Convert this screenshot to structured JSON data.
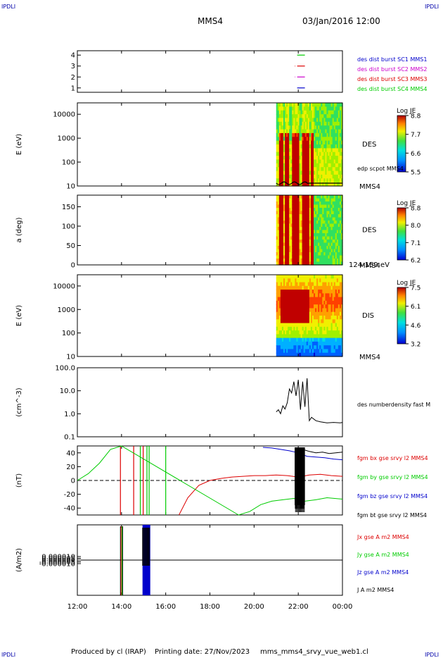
{
  "header": {
    "corner_left_top": "IPDLI",
    "corner_right_top": "IPDLI",
    "corner_left_bottom": "IPDLI",
    "corner_right_bottom": "IPDLI",
    "spacecraft": "MMS4",
    "date": "03/Jan/2016 12:00"
  },
  "footer": {
    "credit": "Produced by cl (IRAP)",
    "printing_date": "Printing date: 27/Nov/2023",
    "filename": "mms_mms4_srvy_vue_web1.cl"
  },
  "colors": {
    "mms1": "#0000cc",
    "mms2": "#cc00cc",
    "mms3": "#dd0000",
    "mms4": "#00cc00",
    "bx": "#dd0000",
    "by": "#00cc00",
    "bz": "#0000cc",
    "bt": "#000000"
  },
  "chart_data": [
    {
      "type": "line",
      "name": "burst-availability",
      "x_range": [
        "12:00",
        "00:00"
      ],
      "yticks": [
        "1",
        "2",
        "3",
        "4"
      ],
      "ylim": [
        0.6,
        4.4
      ],
      "series": [
        {
          "name": "des dist burst SC1 MMS1",
          "y": 1,
          "intervals": [
            [
              21.95,
              22.3
            ]
          ]
        },
        {
          "name": "des dist burst SC2 MMS2",
          "y": 2,
          "intervals": [
            [
              21.85,
              21.87
            ],
            [
              21.95,
              22.3
            ]
          ]
        },
        {
          "name": "des dist burst SC3 MMS3",
          "y": 3,
          "intervals": [
            [
              21.85,
              21.87
            ],
            [
              21.95,
              22.3
            ]
          ]
        },
        {
          "name": "des dist burst SC4 MMS4",
          "y": 4,
          "intervals": [
            [
              21.95,
              22.3
            ]
          ]
        }
      ]
    },
    {
      "type": "heatmap",
      "name": "des-energy",
      "ylabel": "E (eV)",
      "yscale": "log",
      "ylim": [
        10,
        30000
      ],
      "yticks": [
        "10",
        "100",
        "1000",
        "10000"
      ],
      "data_start": "21:00",
      "species_label": "DES",
      "colorbar": {
        "label": "Log JE",
        "ticks": [
          "8.8",
          "7.7",
          "6.6",
          "5.5"
        ],
        "range": [
          5.5,
          8.8
        ]
      },
      "overlay_label": "edp scpot MMS4",
      "sc_label": "MMS4"
    },
    {
      "type": "heatmap",
      "name": "des-pitch-angle",
      "ylabel": "a (deg)",
      "ylim": [
        0,
        180
      ],
      "yticks": [
        "0",
        "50",
        "100",
        "150"
      ],
      "data_start": "21:00",
      "species_label": "DES",
      "colorbar": {
        "label": "Log JE",
        "ticks": [
          "8.8",
          "8.0",
          "7.1",
          "6.2"
        ],
        "range": [
          6.2,
          8.8
        ]
      },
      "sc_label": "MMS4",
      "energy_range_label": "124-159 eV"
    },
    {
      "type": "heatmap",
      "name": "dis-energy",
      "ylabel": "E (eV)",
      "yscale": "log",
      "ylim": [
        10,
        30000
      ],
      "yticks": [
        "10",
        "100",
        "1000",
        "10000"
      ],
      "data_start": "21:00",
      "species_label": "DIS",
      "colorbar": {
        "label": "Log JE",
        "ticks": [
          "7.5",
          "6.1",
          "4.6",
          "3.2"
        ],
        "range": [
          3.2,
          7.5
        ]
      },
      "sc_label": "MMS4"
    },
    {
      "type": "line",
      "name": "density",
      "ylabel": "(cm^-3)",
      "yscale": "log",
      "ylim": [
        0.1,
        100
      ],
      "yticks": [
        "0.1",
        "1.0",
        "10.0",
        "100.0"
      ],
      "series": [
        {
          "name": "des numberdensity fast M",
          "color": "#000000",
          "x": [
            21.0,
            21.1,
            21.2,
            21.3,
            21.4,
            21.5,
            21.6,
            21.7,
            21.8,
            21.9,
            22.0,
            22.1,
            22.2,
            22.3,
            22.4,
            22.5,
            22.6,
            22.8,
            23.0,
            23.3,
            23.6,
            23.9,
            24.0
          ],
          "y": [
            1.2,
            1.5,
            1.0,
            2.2,
            1.6,
            3.0,
            12.0,
            8.0,
            25.0,
            6.0,
            30.0,
            1.5,
            25.0,
            2.0,
            35.0,
            0.5,
            0.7,
            0.5,
            0.45,
            0.4,
            0.42,
            0.4,
            0.42
          ]
        }
      ]
    },
    {
      "type": "line",
      "name": "magnetic-field",
      "ylabel": "(nT)",
      "ylim": [
        -50,
        50
      ],
      "yticks": [
        "-40",
        "-20",
        "0",
        "20",
        "40"
      ],
      "series": [
        {
          "name": "fgm bx gse srvy l2 MMS4",
          "color": "#dd0000",
          "x": [
            16.6,
            17.0,
            17.5,
            18.0,
            18.5,
            19.0,
            19.5,
            20.0,
            20.5,
            21.0,
            21.5,
            22.0,
            22.5,
            23.0,
            23.5,
            24.0
          ],
          "y": [
            -50,
            -25,
            -7,
            0,
            3,
            5,
            6,
            7,
            7,
            8,
            7,
            5,
            8,
            9,
            7,
            6
          ]
        },
        {
          "name": "fgm by gse srvy l2 MMS4",
          "color": "#00cc00",
          "x": [
            12.0,
            12.5,
            13.0,
            13.5,
            14.0,
            19.3,
            19.8,
            20.3,
            20.8,
            21.3,
            21.8,
            22.3,
            22.8,
            23.3,
            24.0
          ],
          "y": [
            0,
            10,
            25,
            45,
            60,
            -60,
            -45,
            -35,
            -30,
            -28,
            -26,
            -30,
            -28,
            -25,
            -27
          ]
        },
        {
          "name": "fgm bz gse srvy l2 MMS4",
          "color": "#0000cc",
          "x": [
            20.4,
            20.8,
            21.2,
            21.6,
            22.0,
            22.4,
            22.8,
            23.2,
            23.6,
            24.0
          ],
          "y": [
            48,
            47,
            45,
            43,
            40,
            35,
            34,
            33,
            31,
            30
          ]
        },
        {
          "name": "fgm bt gse srvy l2 MMS4",
          "color": "#000000",
          "x": [
            21.9,
            22.1,
            22.3,
            22.5,
            22.8,
            23.1,
            23.4,
            23.7,
            24.0
          ],
          "y": [
            42,
            45,
            44,
            42,
            40,
            41,
            39,
            40,
            41
          ]
        }
      ]
    },
    {
      "type": "line",
      "name": "current-density",
      "ylabel": "(A/m2)",
      "ylim": [
        -0.0001,
        0.0001
      ],
      "yticks": [
        "-0.000010",
        "-0.000005",
        "0.000000",
        "0.000005",
        "0.000010"
      ],
      "series": [
        {
          "name": "Jx gse A m2 MMS4",
          "color": "#dd0000",
          "x": [
            12.0,
            24.0
          ],
          "y": [
            0,
            0
          ]
        },
        {
          "name": "Jy gse A m2 MMS4",
          "color": "#00cc00",
          "x": [
            12.0,
            24.0
          ],
          "y": [
            0,
            0
          ]
        },
        {
          "name": "Jz gse A m2 MMS4",
          "color": "#0000cc",
          "x": [
            12.0,
            24.0
          ],
          "y": [
            0,
            0
          ]
        },
        {
          "name": "J A m2 MMS4",
          "color": "#000000",
          "x": [
            12.0,
            24.0
          ],
          "y": [
            0,
            0
          ]
        }
      ]
    }
  ],
  "xaxis": {
    "ticks": [
      "12:00",
      "14:00",
      "16:00",
      "18:00",
      "20:00",
      "22:00",
      "00:00"
    ],
    "range_hours": [
      12,
      24
    ]
  }
}
